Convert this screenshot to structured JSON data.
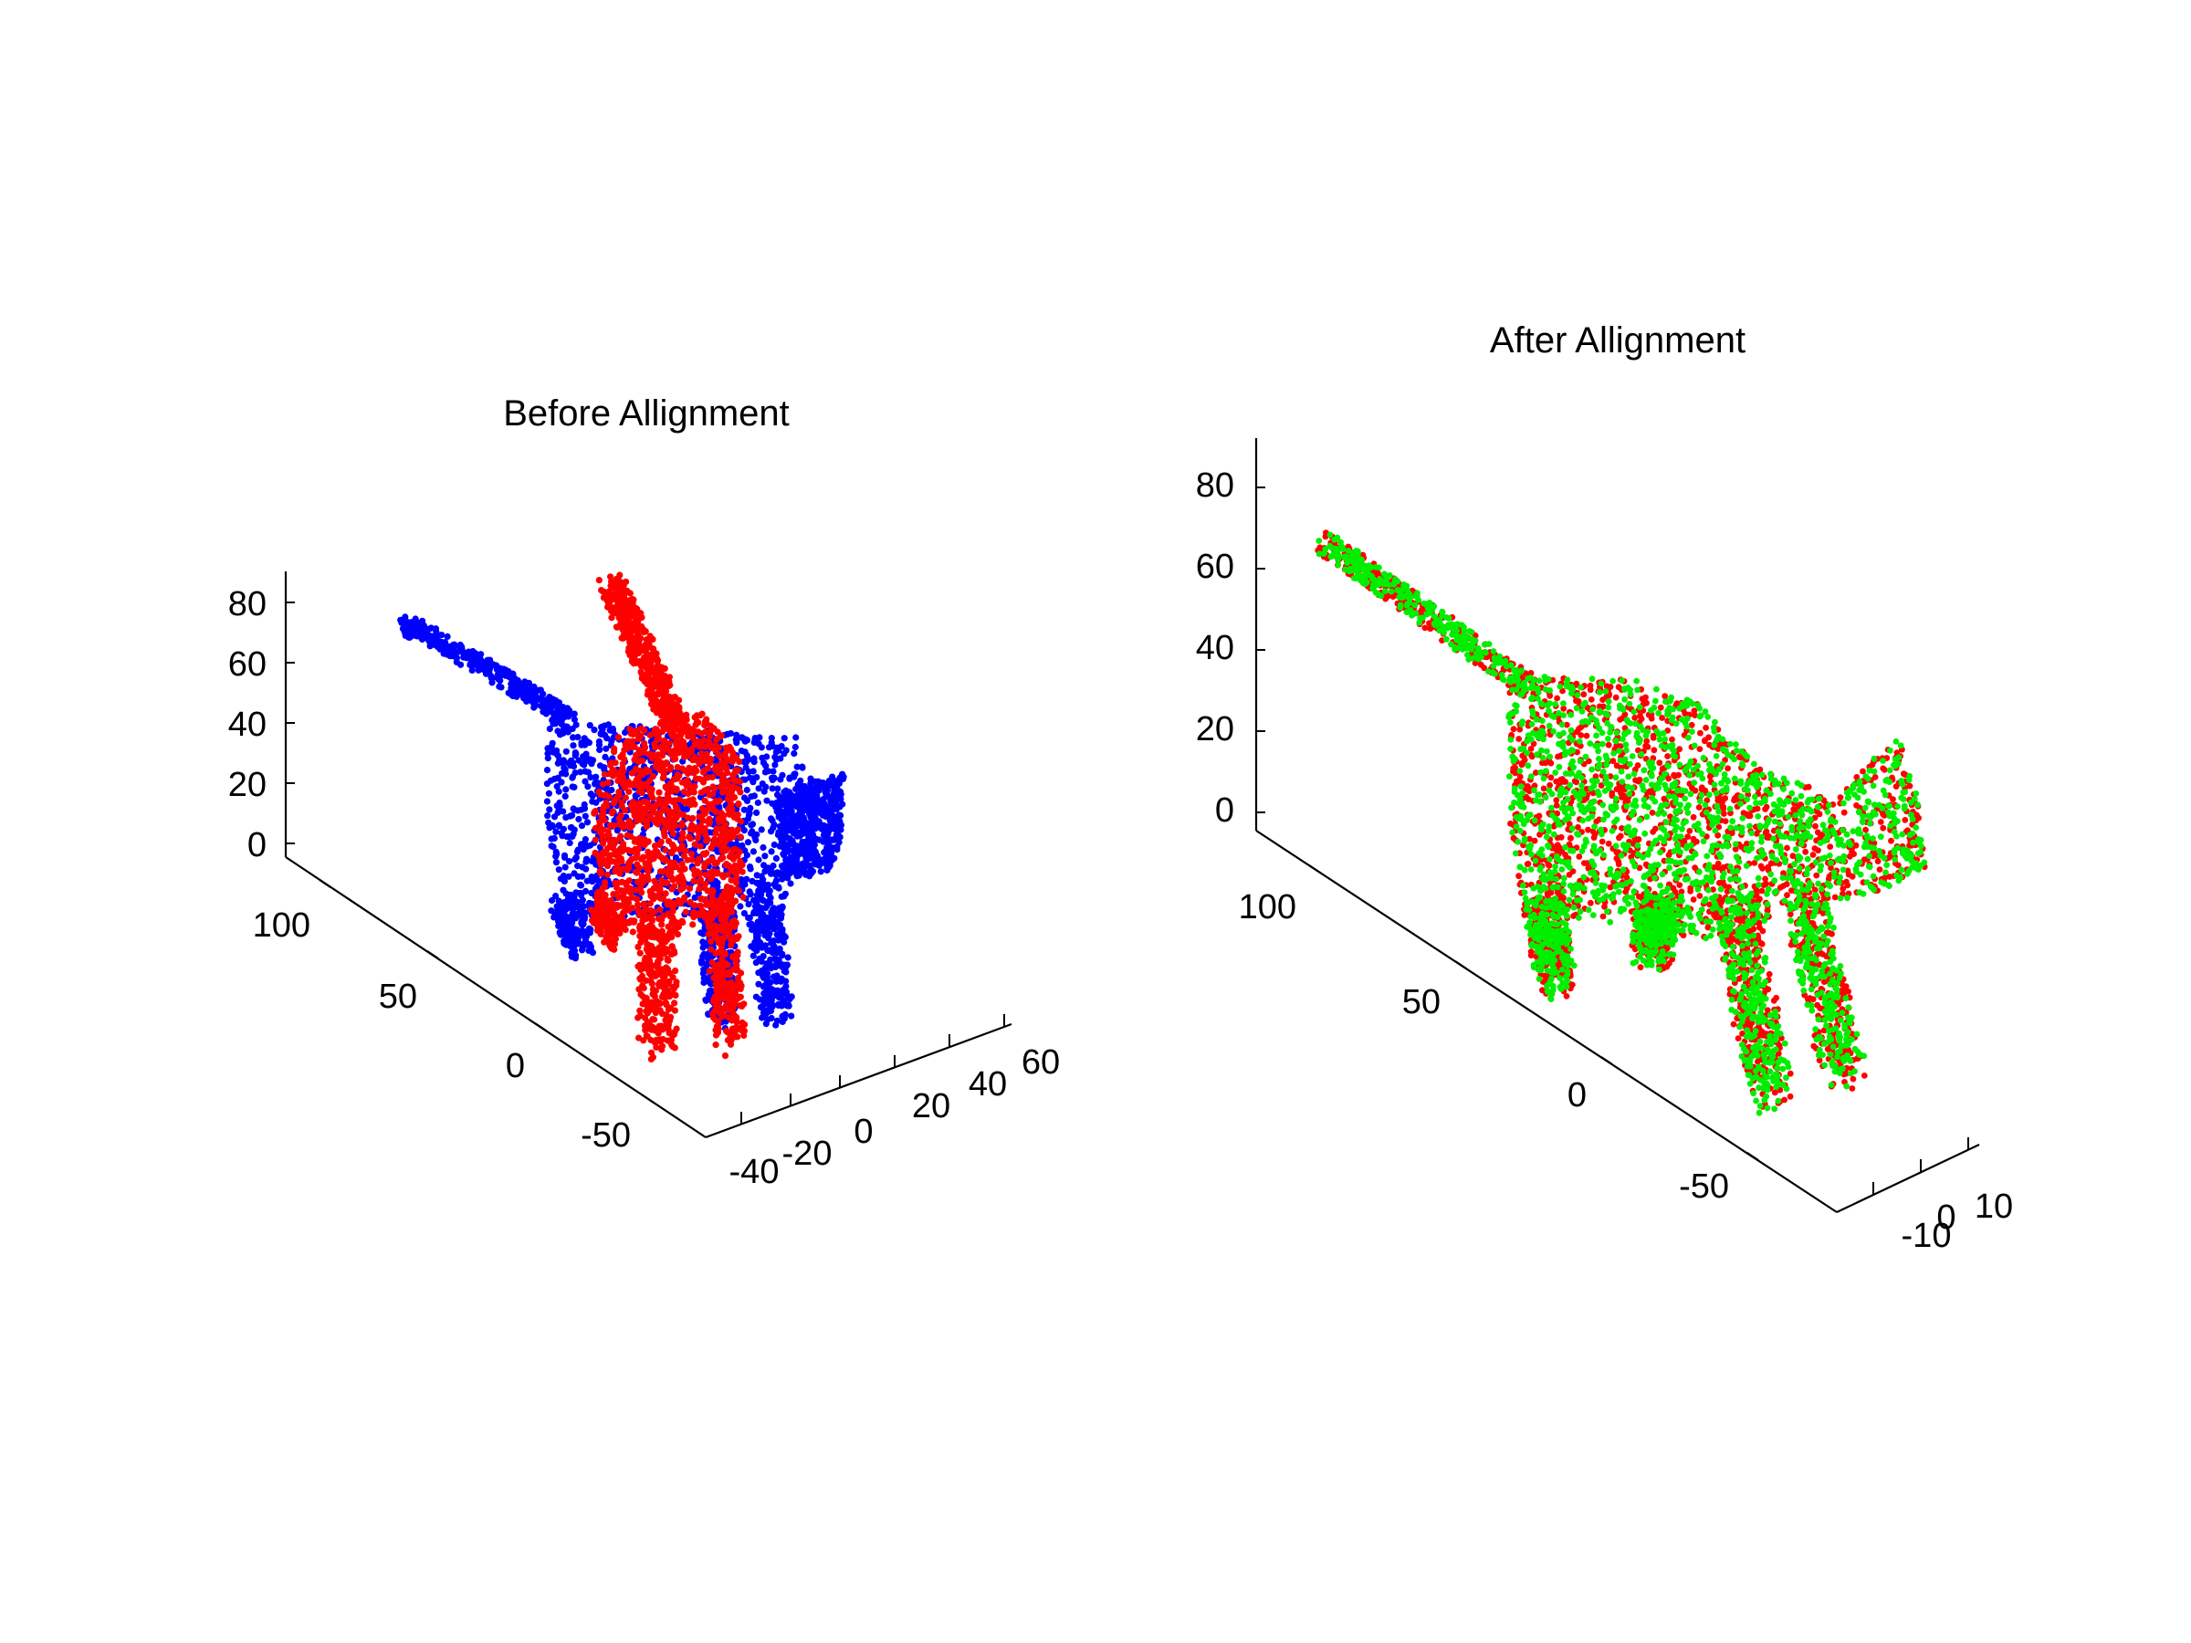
{
  "chart_data": [
    {
      "type": "scatter3d",
      "title": "Before Allignment",
      "z_ticks": [
        "0",
        "20",
        "40",
        "60",
        "80"
      ],
      "depth_ticks": [
        "100",
        "50",
        "0",
        "-50"
      ],
      "x_ticks": [
        "-40",
        "-20",
        "0",
        "20",
        "40",
        "60"
      ],
      "series": [
        {
          "color": "#0000ff"
        },
        {
          "color": "#ff0000"
        }
      ]
    },
    {
      "type": "scatter3d",
      "title": "After Allignment",
      "z_ticks": [
        "0",
        "20",
        "40",
        "60",
        "80"
      ],
      "depth_ticks": [
        "100",
        "50",
        "0",
        "-50"
      ],
      "x_ticks": [
        "-10",
        "0",
        "10"
      ],
      "series": [
        {
          "color": "#ff0000"
        },
        {
          "color": "#00ee00"
        }
      ]
    }
  ]
}
